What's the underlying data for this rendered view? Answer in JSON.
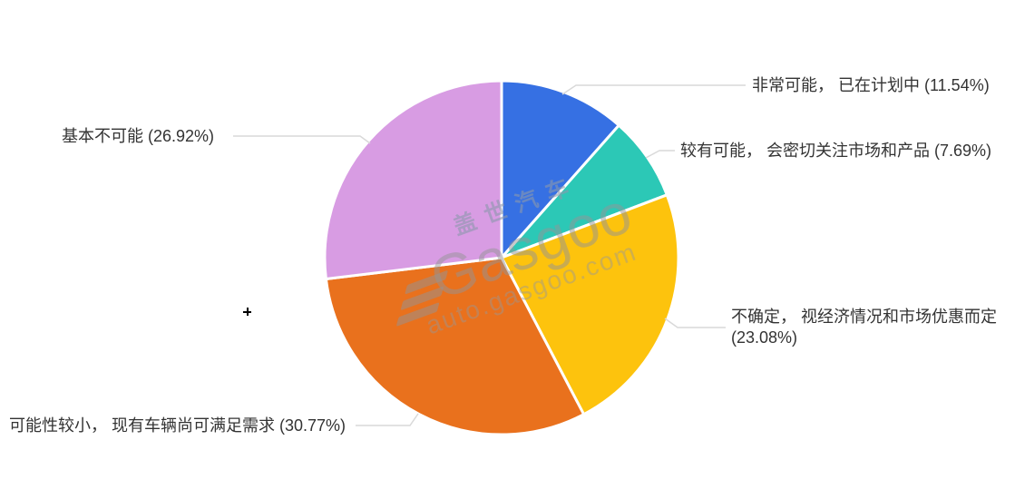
{
  "chart_data": {
    "type": "pie",
    "title": "",
    "categories": [
      "非常可能，已在计划中",
      "较有可能，会密切关注市场和产品",
      "不确定，视经济情况和市场优惠而定",
      "可能性较小，现有车辆尚可满足需求",
      "基本不可能"
    ],
    "values": [
      11.54,
      7.69,
      23.08,
      30.77,
      26.92
    ],
    "unit": "%",
    "colors": [
      "#3670e3",
      "#2cc8b6",
      "#fdc30d",
      "#e9711d",
      "#d89ce3"
    ],
    "display_labels": [
      "非常可能， 已在计划中 (11.54%)",
      "较有可能， 会密切关注市场和产品 (7.69%)",
      "不确定， 视经济情况和市场优惠而定 (23.08%)",
      "可能性较小， 现有车辆尚可满足需求 (30.77%)",
      "基本不可能 (26.92%)"
    ],
    "legend_position": "none",
    "start_angle_deg": 0,
    "clockwise": true,
    "pie_center": [
      553,
      284
    ],
    "pie_radius": 195
  },
  "watermark": {
    "brand_cn": "盖世汽车",
    "brand_en": "Gasgoo",
    "site": "auto.gasgoo.com"
  },
  "ui_colors": {
    "background": "#ffffff",
    "label_text": "#333333",
    "leader_line": "#d9d9d9",
    "slice_border": "#ffffff"
  }
}
